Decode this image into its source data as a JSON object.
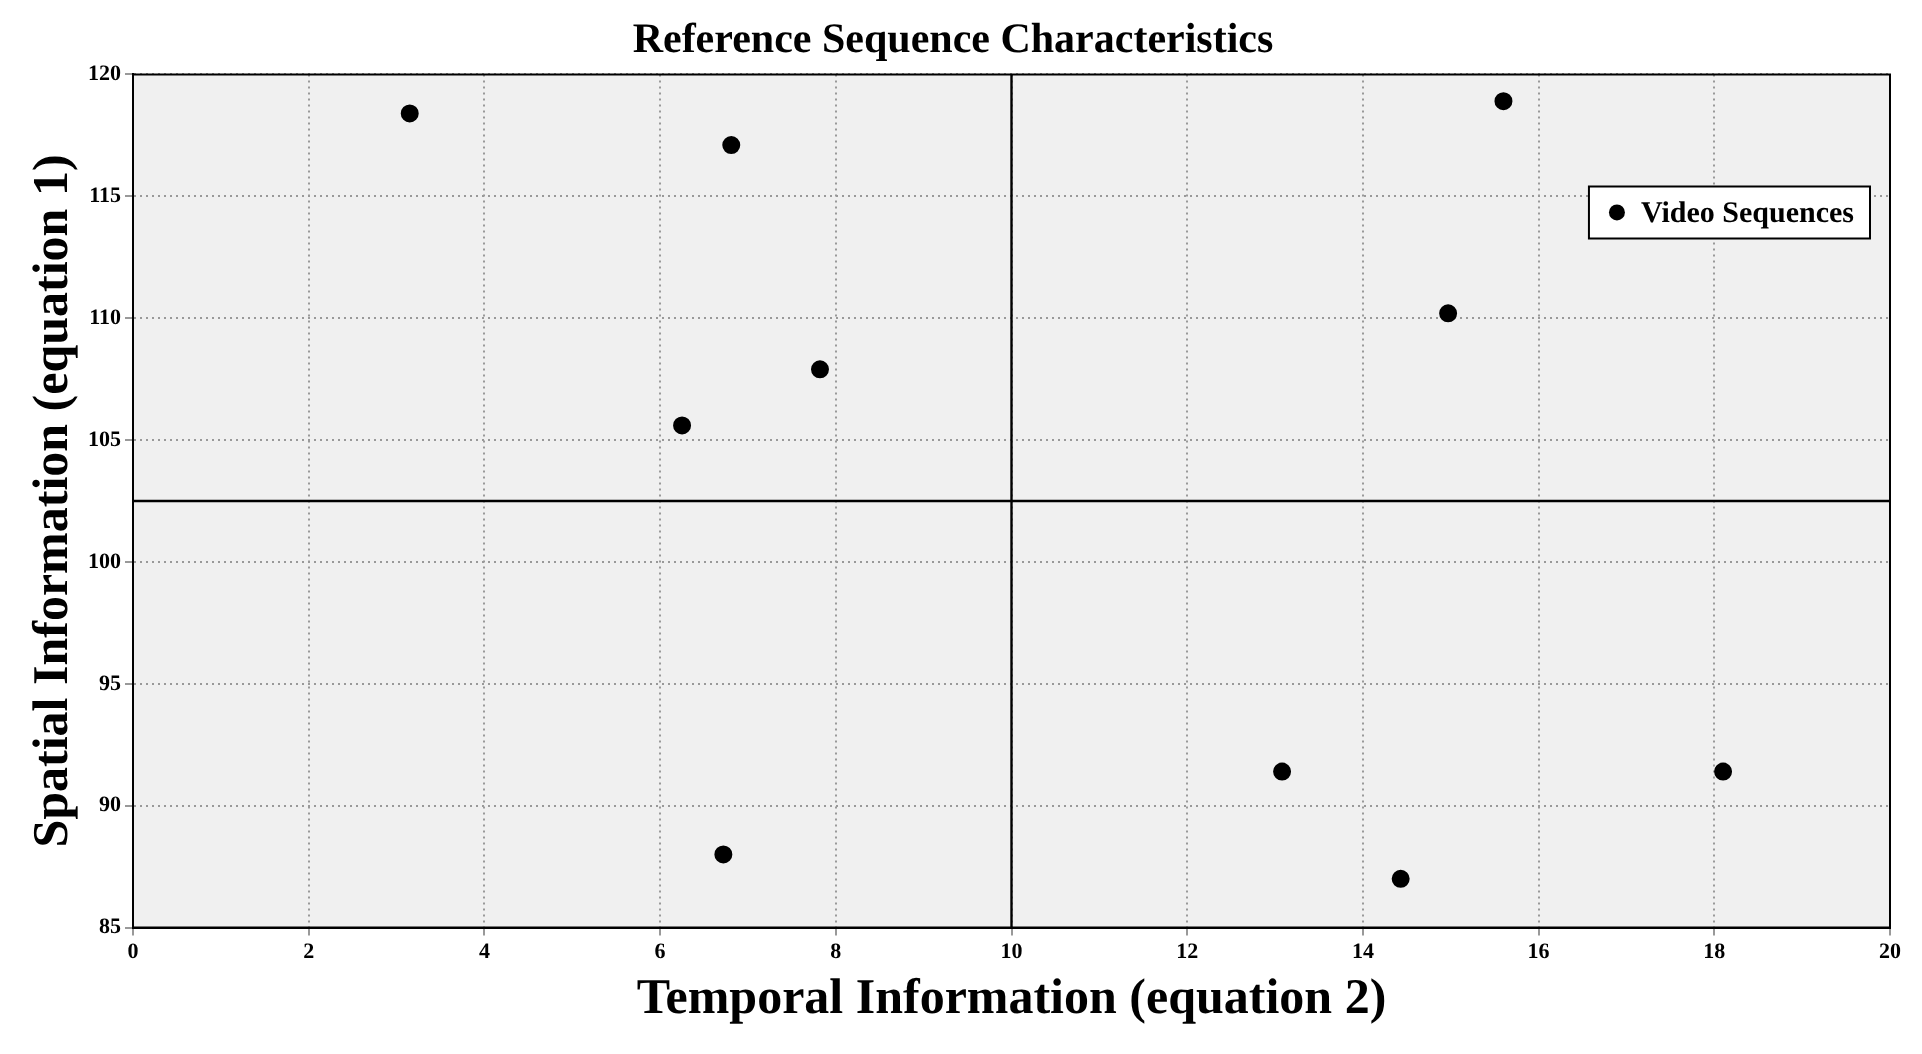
{
  "chart_data": {
    "type": "scatter",
    "title": "Reference Sequence Characteristics",
    "xlabel": "Temporal Information (equation 2)",
    "ylabel": "Spatial Information (equation 1)",
    "series": [
      {
        "name": "Video Sequences",
        "color": "#000000",
        "x": [
          3.15,
          6.81,
          6.25,
          7.82,
          6.72,
          14.97,
          15.6,
          13.08,
          18.1,
          14.43
        ],
        "values": [
          118.4,
          117.1,
          105.6,
          107.9,
          88.0,
          110.2,
          118.9,
          91.4,
          91.4,
          87.0
        ]
      }
    ],
    "xlim": [
      0,
      20
    ],
    "xticks": [
      0,
      2,
      4,
      6,
      8,
      10,
      12,
      14,
      16,
      18,
      20
    ],
    "ylim": [
      85,
      120
    ],
    "yticks": [
      85,
      90,
      95,
      100,
      105,
      110,
      115,
      120
    ],
    "ref_lines": [
      {
        "axis": "x",
        "value": 10,
        "color": "#000000"
      },
      {
        "axis": "y",
        "value": 102.5,
        "color": "#000000"
      }
    ],
    "grid": true,
    "legend": "top right",
    "marker": "circle"
  }
}
